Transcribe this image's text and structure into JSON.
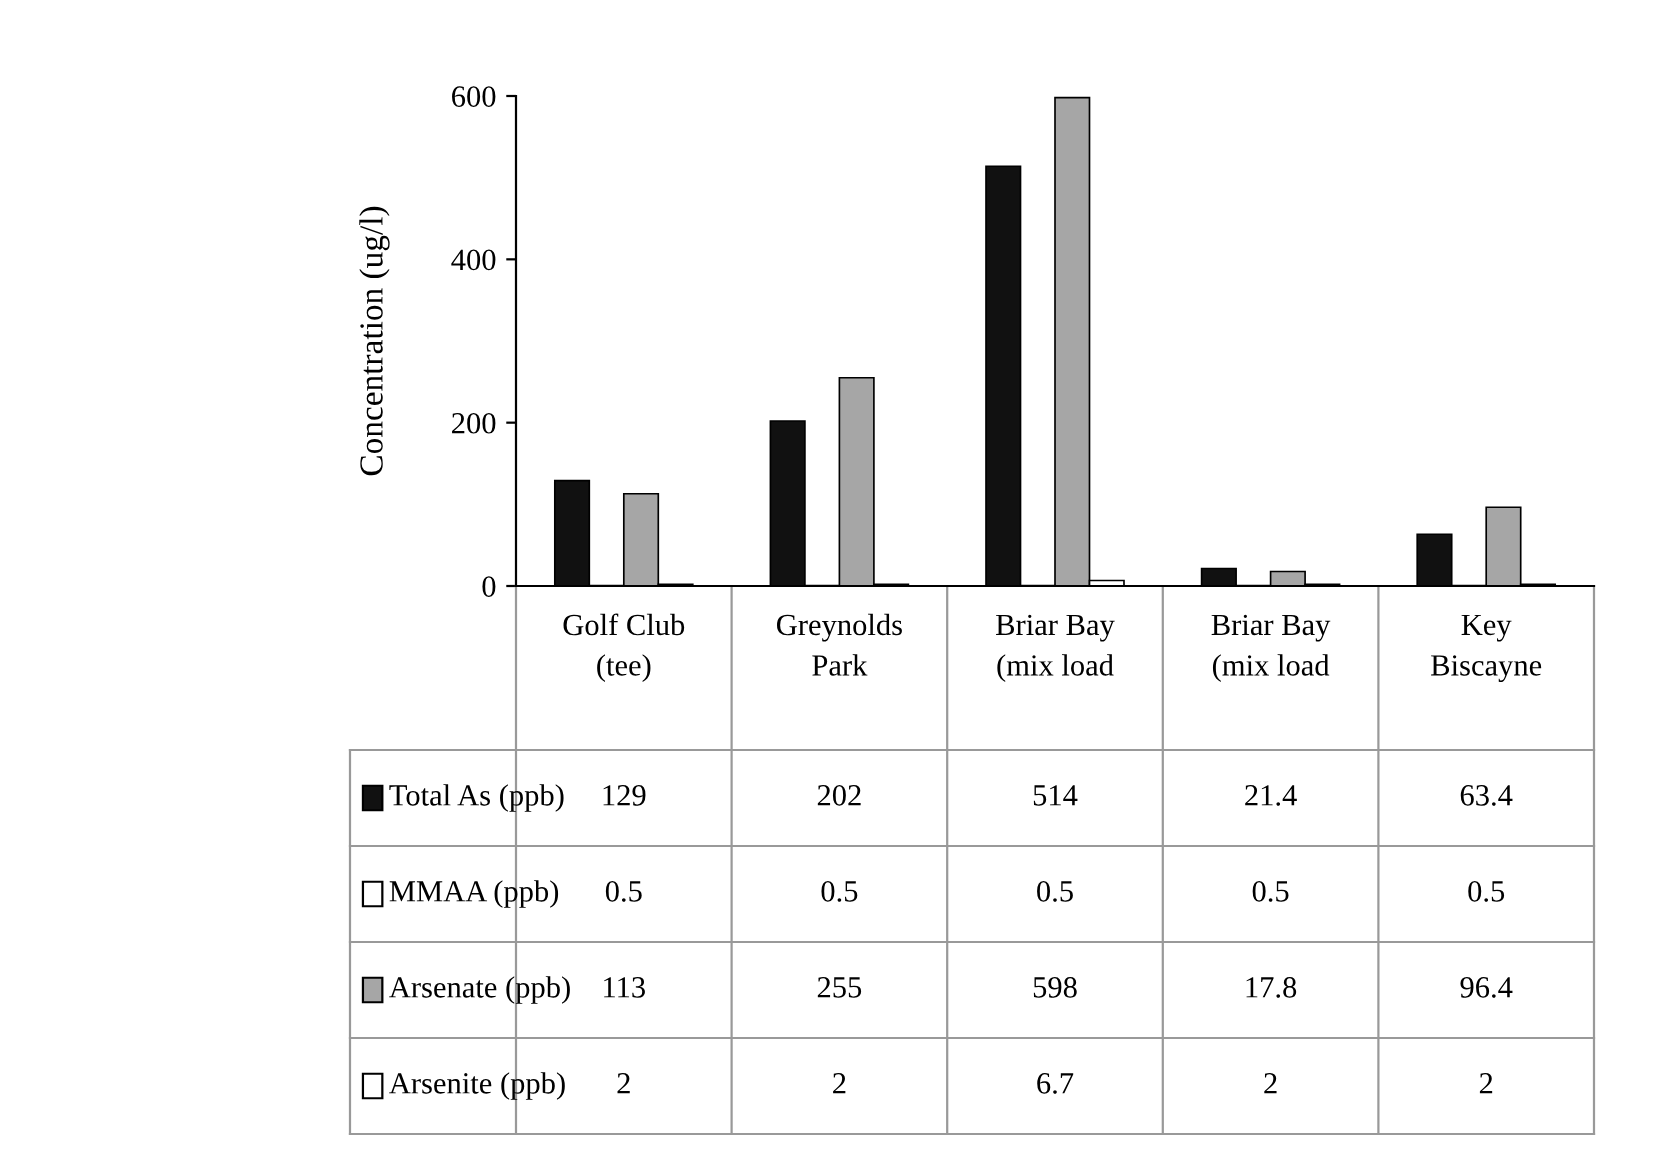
{
  "chart_data": {
    "type": "bar",
    "ylabel": "Concentration (ug/l)",
    "categories": [
      "Golf Club\n(tee)",
      "Greynolds\nPark",
      "Briar Bay\n(mix load",
      "Briar Bay\n(mix load",
      "Key\nBiscayne"
    ],
    "series": [
      {
        "name": "Total As (ppb)",
        "color": "#111111",
        "values": [
          129,
          202,
          514,
          21.4,
          63.4
        ]
      },
      {
        "name": "MMAA (ppb)",
        "color": "#ffffff",
        "values": [
          0.5,
          0.5,
          0.5,
          0.5,
          0.5
        ]
      },
      {
        "name": "Arsenate (ppb)",
        "color": "#a6a6a6",
        "values": [
          113,
          255,
          598,
          17.8,
          96.4
        ]
      },
      {
        "name": "Arsenite (ppb)",
        "color": "#ffffff",
        "values": [
          2,
          2,
          6.7,
          2,
          2
        ]
      }
    ],
    "ylim": [
      0,
      600
    ],
    "yticks": [
      0,
      200,
      400,
      600
    ],
    "grid": false,
    "legend": "bottom left",
    "data_labels": true
  }
}
